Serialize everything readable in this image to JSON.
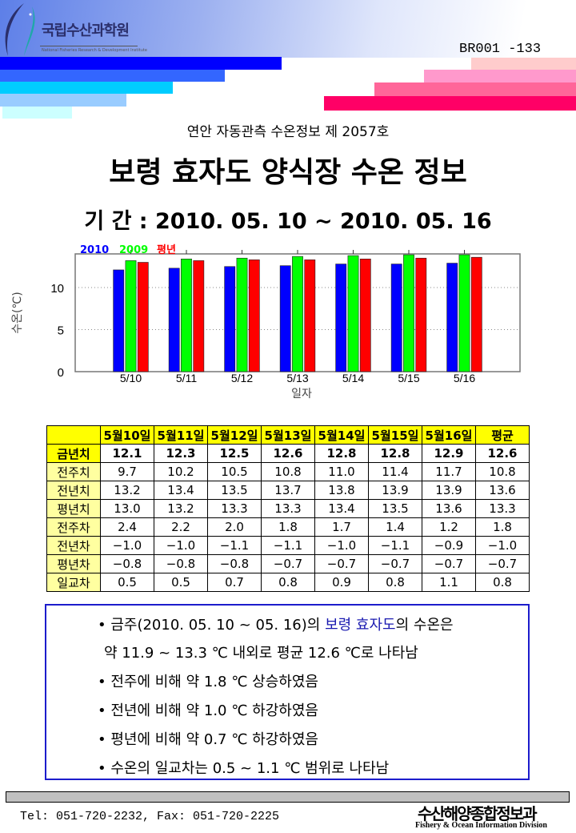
{
  "header": {
    "org_name": "국립수산과학원",
    "org_name_en": "National Fisheries Research & Development Institute",
    "doc_number": "BR001 -133",
    "stripe_colors_left": [
      "#0000ff",
      "#3366ff",
      "#00ccff",
      "#99ccff",
      "#ccffff"
    ],
    "stripe_colors_right": [
      "#ffcccc",
      "#ff99cc",
      "#ff6699",
      "#ff0066"
    ]
  },
  "subtitle": "연안 자동관측 수온정보 제 2057호",
  "title": "보령 효자도 양식장 수온 정보",
  "period": "기 간 : 2010. 05. 10 ~ 2010. 05. 16",
  "chart_data": {
    "type": "bar",
    "categories": [
      "5/10",
      "5/11",
      "5/12",
      "5/13",
      "5/14",
      "5/15",
      "5/16"
    ],
    "series": [
      {
        "name": "2010",
        "color": "#0000ff",
        "values": [
          12.1,
          12.3,
          12.5,
          12.6,
          12.8,
          12.8,
          12.9
        ]
      },
      {
        "name": "2009",
        "color": "#00ff00",
        "values": [
          13.2,
          13.4,
          13.5,
          13.7,
          13.8,
          13.9,
          13.9
        ]
      },
      {
        "name": "평년",
        "color": "#ff0000",
        "values": [
          13.0,
          13.2,
          13.3,
          13.3,
          13.4,
          13.5,
          13.6
        ]
      }
    ],
    "xlabel": "일자",
    "ylabel": "수온(℃)",
    "ylim": [
      0,
      14
    ],
    "yticks": [
      0,
      5,
      10
    ],
    "grid": "horizontal dotted",
    "legend": "top-left"
  },
  "table": {
    "headers": [
      "",
      "5월10일",
      "5월11일",
      "5월12일",
      "5월13일",
      "5월14일",
      "5월15일",
      "5월16일",
      "평균"
    ],
    "rows": [
      {
        "label": "금년치",
        "values": [
          "12.1",
          "12.3",
          "12.5",
          "12.6",
          "12.8",
          "12.8",
          "12.9",
          "12.6"
        ]
      },
      {
        "label": "전주치",
        "values": [
          "9.7",
          "10.2",
          "10.5",
          "10.8",
          "11.0",
          "11.4",
          "11.7",
          "10.8"
        ]
      },
      {
        "label": "전년치",
        "values": [
          "13.2",
          "13.4",
          "13.5",
          "13.7",
          "13.8",
          "13.9",
          "13.9",
          "13.6"
        ]
      },
      {
        "label": "평년치",
        "values": [
          "13.0",
          "13.2",
          "13.3",
          "13.3",
          "13.4",
          "13.5",
          "13.6",
          "13.3"
        ]
      },
      {
        "label": "전주차",
        "values": [
          "2.4",
          "2.2",
          "2.0",
          "1.8",
          "1.7",
          "1.4",
          "1.2",
          "1.8"
        ]
      },
      {
        "label": "전년차",
        "values": [
          "−1.0",
          "−1.0",
          "−1.1",
          "−1.1",
          "−1.0",
          "−1.1",
          "−0.9",
          "−1.0"
        ]
      },
      {
        "label": "평년차",
        "values": [
          "−0.8",
          "−0.8",
          "−0.8",
          "−0.7",
          "−0.7",
          "−0.7",
          "−0.7",
          "−0.7"
        ]
      },
      {
        "label": "일교차",
        "values": [
          "0.5",
          "0.5",
          "0.7",
          "0.8",
          "0.9",
          "0.8",
          "1.1",
          "0.8"
        ]
      }
    ]
  },
  "summary": {
    "line1_a": "• 금주(2010. 05. 10 ~ 05. 16)의 ",
    "line1_hl": "보령 효자도",
    "line1_b": "의 수온은",
    "line2": "약 11.9 ~ 13.3 ℃ 내외로 평균 12.6 ℃로 나타남",
    "line3": "• 전주에 비해 약 1.8 ℃ 상승하였음",
    "line4": "• 전년에 비해 약 1.0 ℃ 하강하였음",
    "line5": "• 평년에 비해 약 0.7 ℃ 하강하였음",
    "line6": "• 수온의 일교차는 0.5 ~ 1.1 ℃ 범위로 나타남"
  },
  "footer": {
    "contact": "Tel: 051-720-2232,  Fax: 051-720-2225",
    "dept": "수산해양종합정보과",
    "dept_en": "Fishery & Ocean Information Division"
  }
}
